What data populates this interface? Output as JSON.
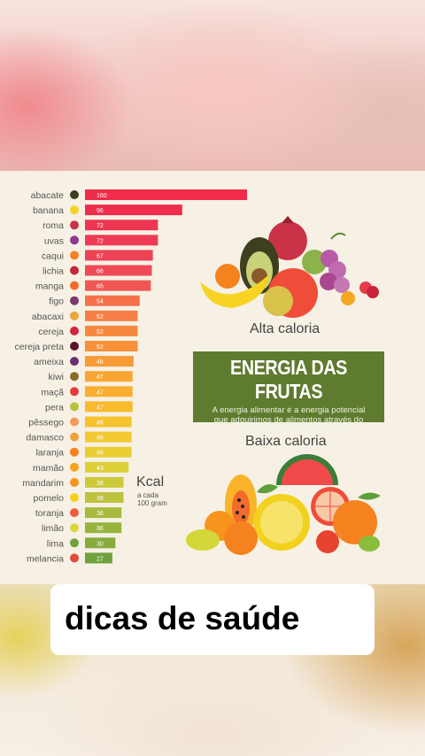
{
  "chart_data": {
    "type": "bar",
    "orientation": "horizontal",
    "categories": [
      "abacate",
      "banana",
      "roma",
      "uvas",
      "caqui",
      "lichia",
      "manga",
      "figo",
      "abacaxi",
      "cereja",
      "cereja preta",
      "ameixa",
      "kiwi",
      "maçã",
      "pera",
      "pêssego",
      "damasco",
      "laranja",
      "mamão",
      "mandarim",
      "pomelo",
      "toranja",
      "limão",
      "lima",
      "melancia"
    ],
    "values": [
      160,
      96,
      72,
      72,
      67,
      66,
      65,
      54,
      52,
      52,
      52,
      48,
      47,
      47,
      47,
      46,
      46,
      46,
      43,
      38,
      38,
      36,
      36,
      30,
      27
    ],
    "value_labels": [
      "160",
      "96",
      "72",
      "72",
      "67",
      "66",
      "65",
      "54",
      "52",
      "52",
      "52",
      "48",
      "47",
      "47",
      "47",
      "46",
      "46",
      "46",
      "43",
      "38",
      "38",
      "36",
      "36",
      "30",
      "27"
    ],
    "colors": [
      "#f02b4b",
      "#ee2c4b",
      "#ee3652",
      "#ee3a55",
      "#ee4257",
      "#ef4a56",
      "#f05654",
      "#f4714a",
      "#f57e46",
      "#f6893f",
      "#f79038",
      "#f89a35",
      "#f9a531",
      "#f9ae2f",
      "#f9b92d",
      "#f6c22d",
      "#f2c930",
      "#e9cd33",
      "#dccf37",
      "#ccc93b",
      "#bcc23d",
      "#a7ba3d",
      "#98b43e",
      "#87ab3d",
      "#6fa13c"
    ]
  },
  "texts": {
    "title": "ENERGIA DAS FRUTAS",
    "subtitle": "A energia alimentar é a energia potencial que adquirimos de alimentos através do processo de respiração celular",
    "alta": "Alta caloria",
    "baixa": "Baixa caloria",
    "kcal": "Kcal",
    "kcal_sub1": "a cada",
    "kcal_sub2": "100 gram",
    "caption": "dicas de saúde"
  },
  "icons": [
    "avocado-icon",
    "banana-icon",
    "pomegranate-icon",
    "grapes-icon",
    "persimmon-icon",
    "lychee-icon",
    "mango-icon",
    "fig-icon",
    "pineapple-icon",
    "cherry-icon",
    "black-cherry-icon",
    "plum-icon",
    "kiwi-icon",
    "apple-icon",
    "pear-icon",
    "peach-icon",
    "apricot-icon",
    "orange-icon",
    "papaya-icon",
    "mandarin-icon",
    "pomelo-icon",
    "grapefruit-icon",
    "lemon-icon",
    "lime-icon",
    "watermelon-icon"
  ]
}
